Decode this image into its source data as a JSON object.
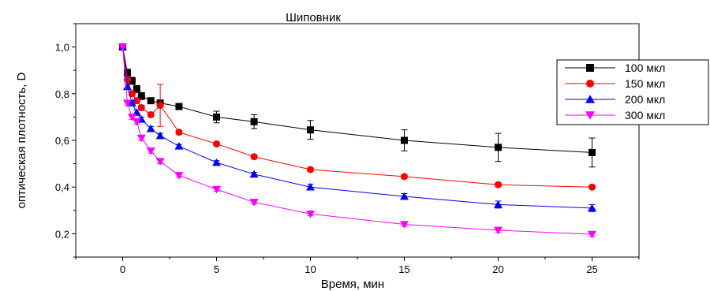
{
  "chart_data": {
    "type": "line",
    "title": "Шиповник",
    "xlabel": "Время, мин",
    "ylabel": "оптическая плотность, D",
    "xlim": [
      -2.5,
      27.5
    ],
    "ylim": [
      0.1,
      1.1
    ],
    "x_ticks": [
      0,
      5,
      10,
      15,
      20,
      25
    ],
    "x_tick_labels": [
      "0",
      "5",
      "10",
      "15",
      "20",
      "25"
    ],
    "y_ticks": [
      0.2,
      0.4,
      0.6,
      0.8,
      1.0
    ],
    "y_tick_labels": [
      "0,2",
      "0,4",
      "0,6",
      "0,8",
      "1,0"
    ],
    "grid": false,
    "legend_position": "right",
    "series": [
      {
        "name": "100 мкл",
        "color": "#000000",
        "marker": "square",
        "x": [
          0,
          0.25,
          0.5,
          0.75,
          1,
          1.5,
          2,
          3,
          5,
          7,
          10,
          15,
          20,
          25
        ],
        "y": [
          1.0,
          0.89,
          0.855,
          0.82,
          0.79,
          0.77,
          0.76,
          0.745,
          0.7,
          0.68,
          0.645,
          0.6,
          0.57,
          0.548
        ],
        "err": [
          0,
          0.015,
          0.015,
          0.015,
          0.015,
          0.012,
          0.012,
          0.01,
          0.025,
          0.03,
          0.04,
          0.045,
          0.06,
          0.062
        ]
      },
      {
        "name": "150 мкл",
        "color": "#ff0000",
        "marker": "circle",
        "x": [
          0,
          0.25,
          0.5,
          0.75,
          1,
          1.5,
          2,
          3,
          5,
          7,
          10,
          15,
          20,
          25
        ],
        "y": [
          1.0,
          0.86,
          0.8,
          0.77,
          0.74,
          0.71,
          0.75,
          0.635,
          0.585,
          0.53,
          0.475,
          0.445,
          0.41,
          0.4
        ],
        "err": [
          0,
          0.01,
          0.01,
          0.01,
          0.01,
          0.01,
          0.09,
          0.008,
          0.008,
          0.008,
          0.008,
          0.008,
          0.008,
          0.008
        ]
      },
      {
        "name": "200 мкл",
        "color": "#0000ff",
        "marker": "triangle-up",
        "x": [
          0,
          0.25,
          0.5,
          0.75,
          1,
          1.5,
          2,
          3,
          5,
          7,
          10,
          15,
          20,
          25
        ],
        "y": [
          1.0,
          0.83,
          0.76,
          0.72,
          0.69,
          0.65,
          0.62,
          0.575,
          0.505,
          0.455,
          0.4,
          0.36,
          0.325,
          0.31
        ],
        "err": [
          0,
          0.01,
          0.01,
          0.01,
          0.01,
          0.01,
          0.01,
          0.008,
          0.008,
          0.008,
          0.012,
          0.012,
          0.015,
          0.015
        ]
      },
      {
        "name": "300 мкл",
        "color": "#ff00ff",
        "marker": "triangle-down",
        "x": [
          0,
          0.25,
          0.5,
          0.75,
          1,
          1.5,
          2,
          3,
          5,
          7,
          10,
          15,
          20,
          25
        ],
        "y": [
          1.0,
          0.76,
          0.7,
          0.68,
          0.61,
          0.555,
          0.51,
          0.45,
          0.39,
          0.335,
          0.285,
          0.24,
          0.215,
          0.198
        ],
        "err": [
          0,
          0.01,
          0.01,
          0.01,
          0.01,
          0.01,
          0.01,
          0.008,
          0.008,
          0.008,
          0.008,
          0.008,
          0.01,
          0.01
        ]
      }
    ]
  }
}
